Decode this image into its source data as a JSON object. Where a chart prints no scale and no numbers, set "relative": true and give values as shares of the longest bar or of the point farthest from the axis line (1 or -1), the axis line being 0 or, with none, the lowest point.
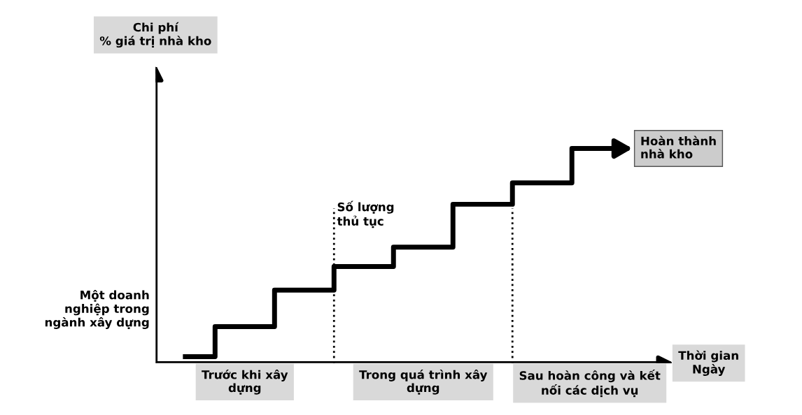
{
  "chart_data": {
    "type": "step",
    "relative": true,
    "categories": [
      null,
      null,
      null,
      null,
      null,
      null,
      null,
      null
    ],
    "series": [
      {
        "color": "#000000",
        "values": [
          0.03,
          0.17,
          0.34,
          0.45,
          0.54,
          0.74,
          0.84,
          1.0
        ]
      }
    ],
    "annotations": [
      "Chi phí\n% giá trị nhà kho",
      "Hoàn thành\nnhà kho",
      "Số lượng\nthủ tục",
      "Một doanh\nnghiệp trong\nngành xây dựng",
      "Thời gian\nNgày",
      "Trước khi xây\ndựng",
      "Trong quá trình xây\ndựng",
      "Sau hoàn công và kết\nnối các dịch vụ"
    ],
    "grid": false,
    "legend": false,
    "line_style": "solid",
    "marker": "none"
  }
}
